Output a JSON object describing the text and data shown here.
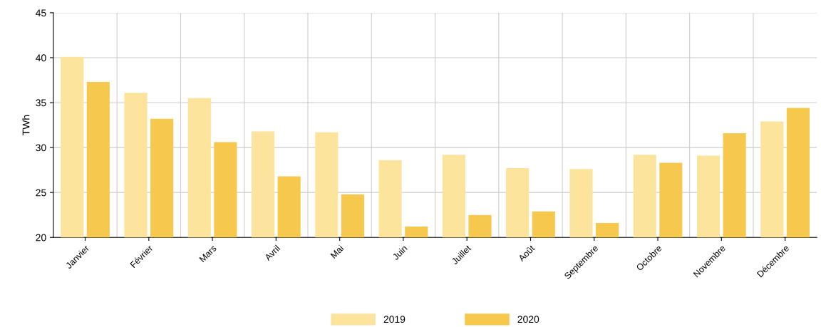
{
  "chart_data": {
    "type": "bar",
    "ylabel": "TWh",
    "categories": [
      "Janvier",
      "Février",
      "Mars",
      "Avril",
      "Mai",
      "Juin",
      "Juillet",
      "Août",
      "Septembre",
      "Octobre",
      "Novembre",
      "Décembre"
    ],
    "series": [
      {
        "name": "2019",
        "color": "#fce49c",
        "values": [
          40.1,
          36.1,
          35.5,
          31.8,
          31.7,
          28.6,
          29.2,
          27.7,
          27.6,
          29.2,
          29.1,
          32.9
        ]
      },
      {
        "name": "2020",
        "color": "#f6c94e",
        "values": [
          37.3,
          33.2,
          30.6,
          26.8,
          24.8,
          21.2,
          22.5,
          22.9,
          21.6,
          28.3,
          31.6,
          34.4
        ]
      }
    ],
    "ylim": [
      20,
      45
    ],
    "yticks": [
      20,
      25,
      30,
      35,
      40,
      45
    ],
    "grid": true,
    "legend": "bottom"
  }
}
